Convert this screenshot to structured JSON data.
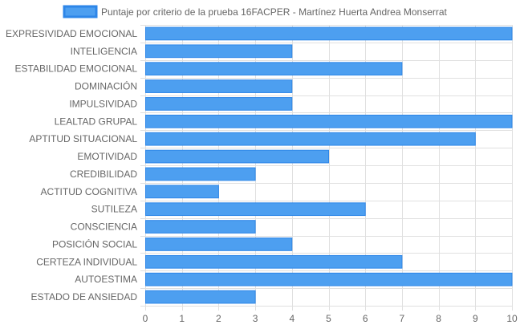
{
  "chart_data": {
    "type": "bar",
    "orientation": "horizontal",
    "legend": {
      "position": "top",
      "series_name": "Puntaje por criterio de la prueba 16FACPER - Martínez Huerta Andrea Monserrat"
    },
    "categories": [
      "EXPRESIVIDAD EMOCIONAL",
      "INTELIGENCIA",
      "ESTABILIDAD EMOCIONAL",
      "DOMINACIÓN",
      "IMPULSIVIDAD",
      "LEALTAD GRUPAL",
      "APTITUD SITUACIONAL",
      "EMOTIVIDAD",
      "CREDIBILIDAD",
      "ACTITUD COGNITIVA",
      "SUTILEZA",
      "CONSCIENCIA",
      "POSICIÓN SOCIAL",
      "CERTEZA INDIVIDUAL",
      "AUTOESTIMA",
      "ESTADO DE ANSIEDAD"
    ],
    "values": [
      10,
      4,
      7,
      4,
      4,
      10,
      9,
      5,
      3,
      2,
      6,
      3,
      4,
      7,
      10,
      3
    ],
    "xlim": [
      0,
      10
    ],
    "xticks": [
      0,
      1,
      2,
      3,
      4,
      5,
      6,
      7,
      8,
      9,
      10
    ],
    "grid": true,
    "colors": {
      "bar_fill": "#4d9ff0",
      "bar_stroke": "#2d86e8",
      "grid": "#e0e0e0",
      "text": "#666666"
    }
  }
}
